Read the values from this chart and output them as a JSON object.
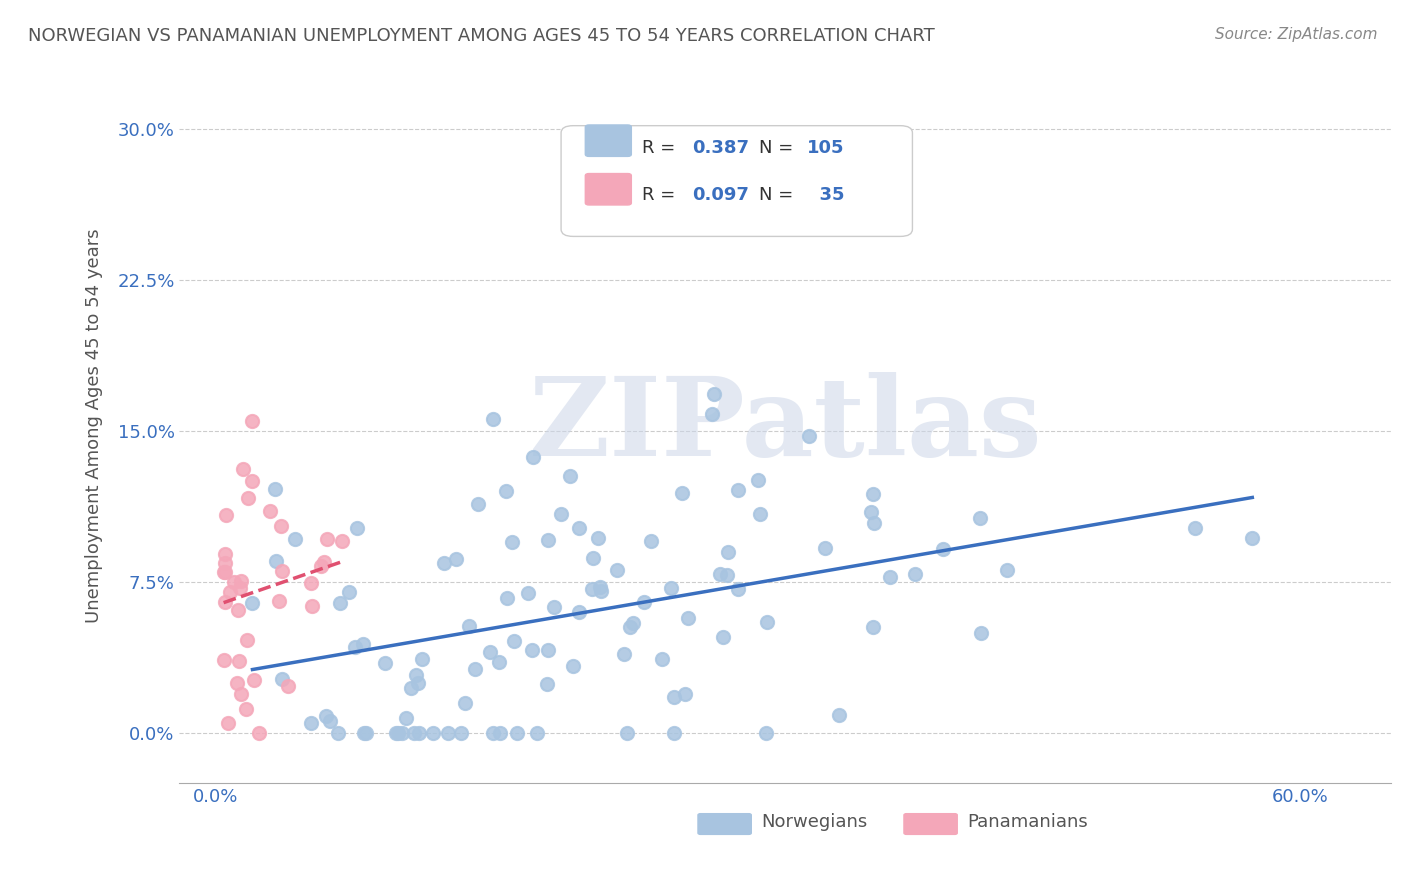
{
  "title": "NORWEGIAN VS PANAMANIAN UNEMPLOYMENT AMONG AGES 45 TO 54 YEARS CORRELATION CHART",
  "source": "Source: ZipAtlas.com",
  "ylabel": "Unemployment Among Ages 45 to 54 years",
  "xlim": [
    -0.02,
    0.65
  ],
  "ylim": [
    -0.025,
    0.33
  ],
  "norwegian_R": 0.387,
  "norwegian_N": 105,
  "panamanian_R": 0.097,
  "panamanian_N": 35,
  "norwegian_color": "#a8c4e0",
  "panamanian_color": "#f4a7b9",
  "norwegian_line_color": "#3a6fbf",
  "panamanian_line_color": "#e05070",
  "legend_R_color": "#3a6fbf",
  "watermark": "ZIPatlas",
  "background_color": "#ffffff",
  "grid_color": "#cccccc",
  "title_color": "#555555",
  "source_color": "#888888",
  "tick_label_color": "#3a6fbf",
  "axis_label_color": "#555555"
}
